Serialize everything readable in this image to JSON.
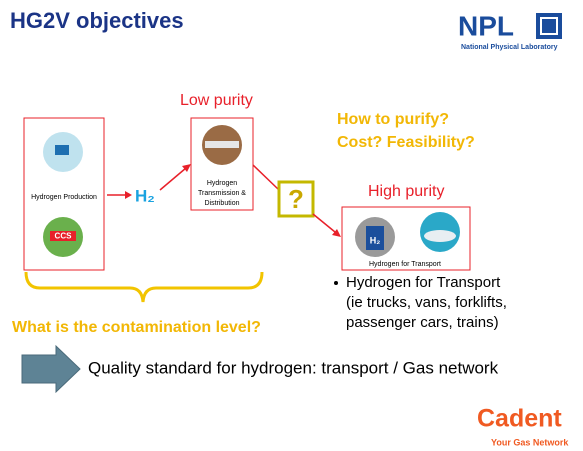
{
  "header": {
    "title": "HG2V objectives"
  },
  "logo": {
    "name": "NPL",
    "subtitle": "National Physical Laboratory"
  },
  "diagram": {
    "low_purity": "Low purity",
    "questions": [
      "How to purify?",
      "Cost?  Feasibility?"
    ],
    "production": {
      "label": "Hydrogen Production",
      "ccs": "CCS"
    },
    "h2": "H₂",
    "transmission": [
      "Hydrogen",
      "Transmission &",
      "Distribution"
    ],
    "unknown": "?",
    "high_purity": "High purity",
    "transport": {
      "pump": "H₂",
      "label": "Hydrogen for Transport"
    },
    "bullet": [
      "Hydrogen for Transport",
      "(ie trucks, vans, forklifts,",
      "passenger cars, trains)"
    ],
    "contamination": "What is the contamination level?",
    "standard": "Quality standard for hydrogen: transport / Gas network"
  },
  "footer": {
    "brand": "Cadent",
    "tagline": "Your Gas Network"
  }
}
